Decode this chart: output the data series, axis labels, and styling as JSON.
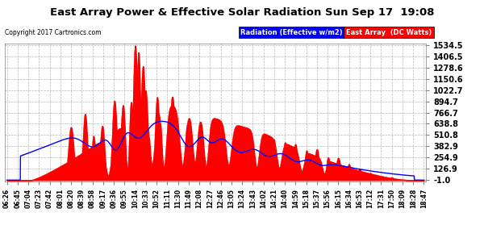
{
  "title": "East Array Power & Effective Solar Radiation Sun Sep 17  19:08",
  "copyright": "Copyright 2017 Cartronics.com",
  "yticks": [
    -1.0,
    126.9,
    254.9,
    382.9,
    510.8,
    638.8,
    766.7,
    894.7,
    1022.7,
    1150.6,
    1278.6,
    1406.5,
    1534.5
  ],
  "ymin": -1.0,
  "ymax": 1534.5,
  "legend_labels": [
    "Radiation (Effective w/m2)",
    "East Array  (DC Watts)"
  ],
  "xtick_labels": [
    "06:26",
    "06:45",
    "07:04",
    "07:23",
    "07:42",
    "08:01",
    "08:20",
    "08:39",
    "08:58",
    "09:17",
    "09:36",
    "09:55",
    "10:14",
    "10:33",
    "10:52",
    "11:11",
    "11:30",
    "11:49",
    "12:08",
    "12:27",
    "12:46",
    "13:05",
    "13:24",
    "13:43",
    "14:02",
    "14:21",
    "14:40",
    "14:59",
    "15:18",
    "15:37",
    "15:56",
    "16:15",
    "16:34",
    "16:53",
    "17:12",
    "17:31",
    "17:50",
    "18:09",
    "18:28",
    "18:47"
  ]
}
